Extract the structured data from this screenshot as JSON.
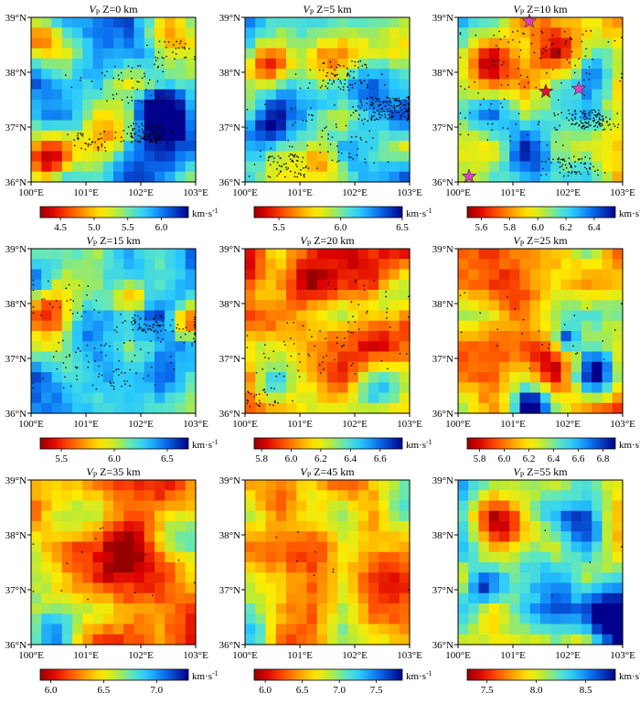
{
  "chart_data": [
    {
      "type": "heatmap",
      "title": "V_P Z=0 km",
      "title_var": "V",
      "title_sub": "P",
      "title_rest": " Z=0 km",
      "xlim": [
        100,
        103
      ],
      "ylim": [
        36,
        39
      ],
      "xticks": [
        "100°E",
        "101°E",
        "102°E",
        "103°E"
      ],
      "yticks": [
        "36°N",
        "37°N",
        "38°N",
        "39°N"
      ],
      "colorbar": {
        "min": 4.2,
        "max": 6.4,
        "ticks": [
          4.5,
          5.0,
          5.5,
          6.0
        ],
        "tick_labels": [
          "4.5",
          "5.0",
          "5.5",
          "6.0"
        ],
        "unit": "km·s",
        "unit_sup": "-1"
      },
      "events": true,
      "stars": []
    },
    {
      "type": "heatmap",
      "title": "V_P Z=5 km",
      "title_var": "V",
      "title_sub": "P",
      "title_rest": " Z=5 km",
      "xlim": [
        100,
        103
      ],
      "ylim": [
        36,
        39
      ],
      "xticks": [
        "100°E",
        "101°E",
        "102°E",
        "103°E"
      ],
      "yticks": [
        "36°N",
        "37°N",
        "38°N",
        "39°N"
      ],
      "colorbar": {
        "min": 5.3,
        "max": 6.5,
        "ticks": [
          5.5,
          6.0,
          6.5
        ],
        "tick_labels": [
          "5.5",
          "6.0",
          "6.5"
        ],
        "unit": "km·s",
        "unit_sup": "-1"
      },
      "events": true,
      "stars": []
    },
    {
      "type": "heatmap",
      "title": "V_P Z=10 km",
      "title_var": "V",
      "title_sub": "P",
      "title_rest": " Z=10 km",
      "xlim": [
        100,
        103
      ],
      "ylim": [
        36,
        39
      ],
      "xticks": [
        "100°E",
        "101°E",
        "102°E",
        "103°E"
      ],
      "yticks": [
        "36°N",
        "37°N",
        "38°N",
        "39°N"
      ],
      "colorbar": {
        "min": 5.5,
        "max": 6.55,
        "ticks": [
          5.6,
          5.8,
          6.0,
          6.2,
          6.4
        ],
        "tick_labels": [
          "5.6",
          "5.8",
          "6.0",
          "6.2",
          "6.4"
        ],
        "unit": "km·s",
        "unit_sup": "-1"
      },
      "events": true,
      "stars": [
        {
          "lon": 101.3,
          "lat": 38.93,
          "color": "#e040c0"
        },
        {
          "lon": 101.6,
          "lat": 37.65,
          "color": "#e01030"
        },
        {
          "lon": 102.2,
          "lat": 37.7,
          "color": "#e040c0"
        },
        {
          "lon": 100.2,
          "lat": 36.1,
          "color": "#e040c0"
        }
      ]
    },
    {
      "type": "heatmap",
      "title": "V_P Z=15 km",
      "title_var": "V",
      "title_sub": "P",
      "title_rest": " Z=15 km",
      "xlim": [
        100,
        103
      ],
      "ylim": [
        36,
        39
      ],
      "xticks": [
        "100°E",
        "101°E",
        "102°E",
        "103°E"
      ],
      "yticks": [
        "36°N",
        "37°N",
        "38°N",
        "39°N"
      ],
      "colorbar": {
        "min": 5.3,
        "max": 6.7,
        "ticks": [
          5.5,
          6.0,
          6.5
        ],
        "tick_labels": [
          "5.5",
          "6.0",
          "6.5"
        ],
        "unit": "km·s",
        "unit_sup": "-1"
      },
      "events": true,
      "stars": []
    },
    {
      "type": "heatmap",
      "title": "V_P Z=20 km",
      "title_var": "V",
      "title_sub": "P",
      "title_rest": " Z=20 km",
      "xlim": [
        100,
        103
      ],
      "ylim": [
        36,
        39
      ],
      "xticks": [
        "100°E",
        "101°E",
        "102°E",
        "103°E"
      ],
      "yticks": [
        "36°N",
        "37°N",
        "38°N",
        "39°N"
      ],
      "colorbar": {
        "min": 5.75,
        "max": 6.75,
        "ticks": [
          5.8,
          6.0,
          6.2,
          6.4,
          6.6
        ],
        "tick_labels": [
          "5.8",
          "6.0",
          "6.2",
          "6.4",
          "6.6"
        ],
        "unit": "km·s",
        "unit_sup": "-1"
      },
      "events": true,
      "stars": []
    },
    {
      "type": "heatmap",
      "title": "V_P Z=25 km",
      "title_var": "V",
      "title_sub": "P",
      "title_rest": " Z=25 km",
      "xlim": [
        100,
        103
      ],
      "ylim": [
        36,
        39
      ],
      "xticks": [
        "100°E",
        "101°E",
        "102°E",
        "103°E"
      ],
      "yticks": [
        "36°N",
        "37°N",
        "38°N",
        "39°N"
      ],
      "colorbar": {
        "min": 5.7,
        "max": 6.9,
        "ticks": [
          5.8,
          6.0,
          6.2,
          6.4,
          6.6,
          6.8
        ],
        "tick_labels": [
          "5.8",
          "6.0",
          "6.2",
          "6.4",
          "6.6",
          "6.8"
        ],
        "unit": "km·s",
        "unit_sup": "-1"
      },
      "events": true,
      "stars": []
    },
    {
      "type": "heatmap",
      "title": "V_P Z=35 km",
      "title_var": "V",
      "title_sub": "P",
      "title_rest": " Z=35 km",
      "xlim": [
        100,
        103
      ],
      "ylim": [
        36,
        39
      ],
      "xticks": [
        "100°E",
        "101°E",
        "102°E",
        "103°E"
      ],
      "yticks": [
        "36°N",
        "37°N",
        "38°N",
        "39°N"
      ],
      "colorbar": {
        "min": 5.9,
        "max": 7.3,
        "ticks": [
          6.0,
          6.5,
          7.0
        ],
        "tick_labels": [
          "6.0",
          "6.5",
          "7.0"
        ],
        "unit": "km·s",
        "unit_sup": "-1"
      },
      "events": true,
      "stars": []
    },
    {
      "type": "heatmap",
      "title": "V_P Z=45 km",
      "title_var": "V",
      "title_sub": "P",
      "title_rest": " Z=45 km",
      "xlim": [
        100,
        103
      ],
      "ylim": [
        36,
        39
      ],
      "xticks": [
        "100°E",
        "101°E",
        "102°E",
        "103°E"
      ],
      "yticks": [
        "36°N",
        "37°N",
        "38°N",
        "39°N"
      ],
      "colorbar": {
        "min": 5.85,
        "max": 7.85,
        "ticks": [
          6.0,
          6.5,
          7.0,
          7.5
        ],
        "tick_labels": [
          "6.0",
          "6.5",
          "7.0",
          "7.5"
        ],
        "unit": "km·s",
        "unit_sup": "-1"
      },
      "events": true,
      "stars": []
    },
    {
      "type": "heatmap",
      "title": "V_P Z=55 km",
      "title_var": "V",
      "title_sub": "P",
      "title_rest": " Z=55 km",
      "xlim": [
        100,
        103
      ],
      "ylim": [
        36,
        39
      ],
      "xticks": [
        "100°E",
        "101°E",
        "102°E",
        "103°E"
      ],
      "yticks": [
        "36°N",
        "37°N",
        "38°N",
        "39°N"
      ],
      "colorbar": {
        "min": 7.3,
        "max": 8.8,
        "ticks": [
          7.5,
          8.0,
          8.5
        ],
        "tick_labels": [
          "7.5",
          "8.0",
          "8.5"
        ],
        "unit": "km·s",
        "unit_sup": "-1"
      },
      "events": true,
      "stars": []
    }
  ]
}
